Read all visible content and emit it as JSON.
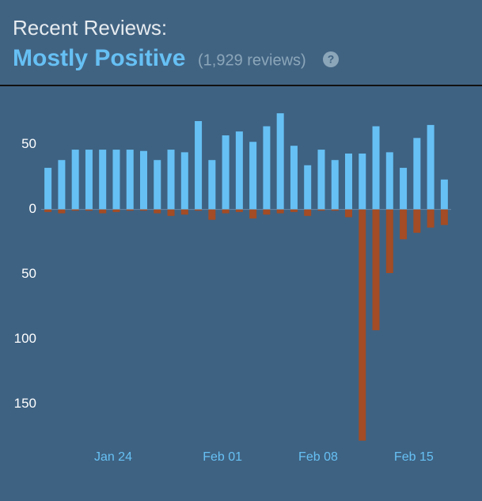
{
  "header": {
    "title": "Recent Reviews:",
    "summary": "Mostly Positive",
    "count": "(1,929 reviews)",
    "help": "?"
  },
  "chart_data": {
    "type": "bar",
    "categories": [
      null,
      null,
      null,
      null,
      null,
      "Jan 24",
      null,
      null,
      null,
      null,
      null,
      null,
      null,
      "Feb 01",
      null,
      null,
      null,
      null,
      null,
      null,
      "Feb 08",
      null,
      null,
      null,
      null,
      null,
      null,
      "Feb 15",
      null,
      null
    ],
    "series": [
      {
        "color": "#66c0f4",
        "values": [
          32,
          38,
          46,
          46,
          46,
          46,
          46,
          45,
          38,
          46,
          44,
          68,
          38,
          57,
          60,
          52,
          64,
          74,
          49,
          34,
          46,
          38,
          43,
          43,
          64,
          44,
          32,
          55,
          65,
          23
        ]
      },
      {
        "color": "#a34c25",
        "values": [
          -2,
          -3,
          -1,
          -1,
          -3,
          -2,
          -1,
          -1,
          -3,
          -5,
          -4,
          -1,
          -8,
          -3,
          -2,
          -7,
          -4,
          -3,
          -2,
          -5,
          -1,
          -1,
          -6,
          -178,
          -93,
          -49,
          -23,
          -18,
          -14,
          -12
        ]
      }
    ],
    "ylim": [
      -180,
      82
    ],
    "yticks": [
      50,
      0,
      {
        "value": -50,
        "label": "50"
      },
      {
        "value": -100,
        "label": "100"
      },
      {
        "value": -150,
        "label": "150"
      }
    ]
  }
}
